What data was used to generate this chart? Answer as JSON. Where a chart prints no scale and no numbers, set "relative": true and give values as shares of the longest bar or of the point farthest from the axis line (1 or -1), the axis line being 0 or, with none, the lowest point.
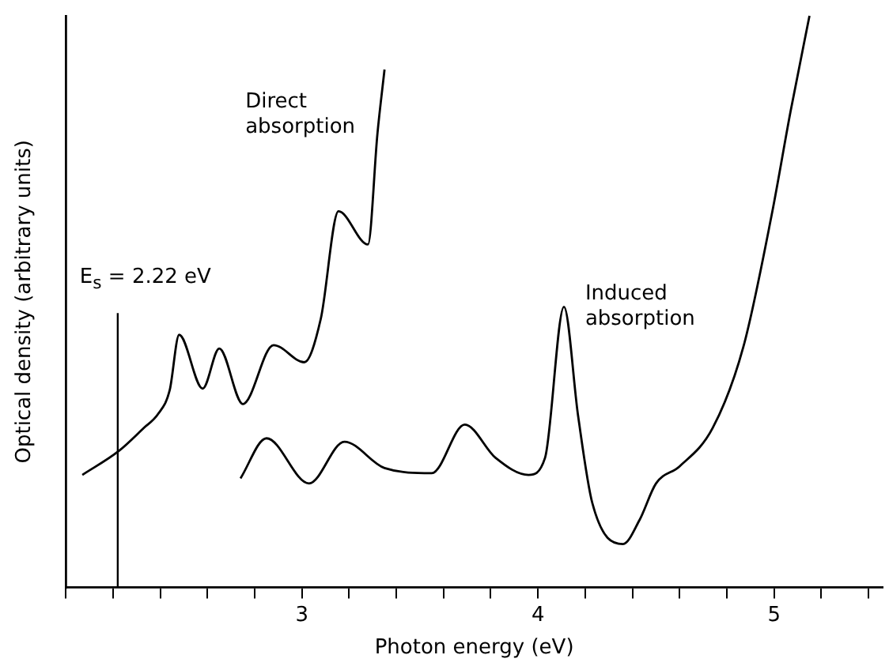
{
  "chart_data": {
    "type": "line",
    "xlabel": "Photon energy (eV)",
    "ylabel": "Optical density (arbitrary units)",
    "relative": true,
    "grid": false,
    "legend": false,
    "marker": "none",
    "line_style": "solid",
    "xlim": [
      2.0,
      5.46
    ],
    "xticks": [
      {
        "value": 2.0,
        "label": null
      },
      {
        "value": 2.2,
        "label": null
      },
      {
        "value": 2.4,
        "label": null
      },
      {
        "value": 2.6,
        "label": null
      },
      {
        "value": 2.8,
        "label": null
      },
      3,
      {
        "value": 3.2,
        "label": null
      },
      {
        "value": 3.4,
        "label": null
      },
      {
        "value": 3.6,
        "label": null
      },
      {
        "value": 3.8,
        "label": null
      },
      4,
      {
        "value": 4.2,
        "label": null
      },
      {
        "value": 4.4,
        "label": null
      },
      {
        "value": 4.6,
        "label": null
      },
      {
        "value": 4.8,
        "label": null
      },
      5,
      {
        "value": 5.2,
        "label": null
      },
      {
        "value": 5.4,
        "label": null
      }
    ],
    "ref_lines": [
      {
        "axis": "x",
        "value": 2.22,
        "label": "E$_{s}$ = 2.22 eV",
        "color": "#000000"
      }
    ],
    "series": [
      {
        "name": "Direct absorption",
        "color": "#000000",
        "x": [
          2.07,
          2.225,
          2.33,
          2.39,
          2.44,
          2.48,
          2.58,
          2.65,
          2.75,
          2.88,
          3.01,
          3.08,
          3.155,
          3.28,
          3.32,
          3.35
        ],
        "values": [
          0.197,
          0.239,
          0.279,
          0.303,
          0.345,
          0.442,
          0.348,
          0.418,
          0.321,
          0.424,
          0.394,
          0.47,
          0.658,
          0.6,
          0.794,
          0.906
        ]
      },
      {
        "name": "Induced absorption",
        "color": "#000000",
        "x": [
          2.74,
          2.85,
          3.03,
          3.18,
          3.35,
          3.55,
          3.69,
          3.82,
          3.96,
          4.03,
          4.11,
          4.17,
          4.23,
          4.36,
          4.43,
          4.5,
          4.6,
          4.74,
          4.87,
          4.99,
          5.07,
          5.15
        ],
        "values": [
          0.191,
          0.261,
          0.182,
          0.255,
          0.209,
          0.2,
          0.285,
          0.227,
          0.197,
          0.227,
          0.491,
          0.3,
          0.148,
          0.076,
          0.118,
          0.182,
          0.212,
          0.279,
          0.421,
          0.652,
          0.833,
          1
        ]
      }
    ]
  }
}
